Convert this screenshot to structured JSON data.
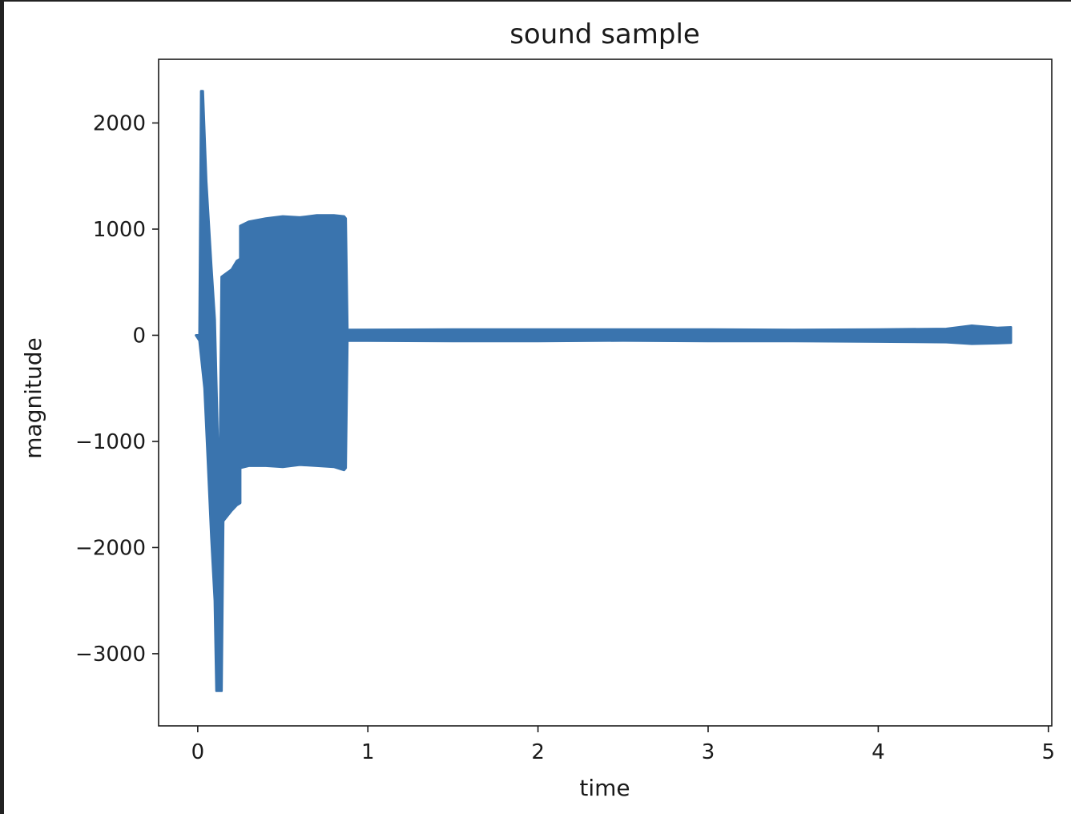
{
  "chart_data": {
    "type": "line",
    "title": "sound sample",
    "xlabel": "time",
    "ylabel": "magnitude",
    "xlim": [
      -0.23,
      5.02
    ],
    "ylim": [
      -3680,
      2600
    ],
    "x_ticks": [
      {
        "value": 0,
        "label": "0"
      },
      {
        "value": 1,
        "label": "1"
      },
      {
        "value": 2,
        "label": "2"
      },
      {
        "value": 3,
        "label": "3"
      },
      {
        "value": 4,
        "label": "4"
      },
      {
        "value": 5,
        "label": "5"
      }
    ],
    "y_ticks": [
      {
        "value": 2000,
        "label": "2000"
      },
      {
        "value": 1000,
        "label": "1000"
      },
      {
        "value": 0,
        "label": "0"
      },
      {
        "value": -1000,
        "label": "−1000"
      },
      {
        "value": -2000,
        "label": "−2000"
      },
      {
        "value": -3000,
        "label": "−3000"
      }
    ],
    "grid": false,
    "series": [
      {
        "color": "#3a74ae",
        "description_envelope": "signal amplitude envelope over time",
        "upper": [
          [
            -0.01,
            0
          ],
          [
            0.01,
            0
          ],
          [
            0.02,
            2300
          ],
          [
            0.03,
            2300
          ],
          [
            0.05,
            1450
          ],
          [
            0.08,
            650
          ],
          [
            0.1,
            150
          ],
          [
            0.12,
            -1150
          ],
          [
            0.13,
            -1150
          ],
          [
            0.14,
            550
          ],
          [
            0.2,
            620
          ],
          [
            0.23,
            700
          ],
          [
            0.25,
            720
          ],
          [
            0.25,
            1030
          ],
          [
            0.3,
            1070
          ],
          [
            0.4,
            1100
          ],
          [
            0.5,
            1120
          ],
          [
            0.6,
            1110
          ],
          [
            0.7,
            1130
          ],
          [
            0.8,
            1130
          ],
          [
            0.86,
            1120
          ],
          [
            0.87,
            1100
          ],
          [
            0.88,
            50
          ],
          [
            1.5,
            55
          ],
          [
            2.0,
            55
          ],
          [
            2.5,
            55
          ],
          [
            3.0,
            55
          ],
          [
            3.5,
            50
          ],
          [
            4.0,
            55
          ],
          [
            4.4,
            60
          ],
          [
            4.55,
            90
          ],
          [
            4.7,
            70
          ],
          [
            4.78,
            75
          ]
        ],
        "lower": [
          [
            -0.01,
            0
          ],
          [
            0.01,
            -50
          ],
          [
            0.04,
            -500
          ],
          [
            0.06,
            -1200
          ],
          [
            0.08,
            -1900
          ],
          [
            0.1,
            -2500
          ],
          [
            0.11,
            -3350
          ],
          [
            0.14,
            -3350
          ],
          [
            0.15,
            -1750
          ],
          [
            0.2,
            -1650
          ],
          [
            0.23,
            -1600
          ],
          [
            0.25,
            -1580
          ],
          [
            0.25,
            -1250
          ],
          [
            0.3,
            -1230
          ],
          [
            0.4,
            -1230
          ],
          [
            0.5,
            -1240
          ],
          [
            0.6,
            -1220
          ],
          [
            0.7,
            -1230
          ],
          [
            0.8,
            -1240
          ],
          [
            0.86,
            -1270
          ],
          [
            0.87,
            -1250
          ],
          [
            0.88,
            -50
          ],
          [
            1.5,
            -55
          ],
          [
            2.0,
            -55
          ],
          [
            2.5,
            -50
          ],
          [
            3.0,
            -55
          ],
          [
            3.5,
            -55
          ],
          [
            4.0,
            -60
          ],
          [
            4.4,
            -65
          ],
          [
            4.55,
            -80
          ],
          [
            4.7,
            -75
          ],
          [
            4.78,
            -70
          ]
        ]
      }
    ]
  }
}
